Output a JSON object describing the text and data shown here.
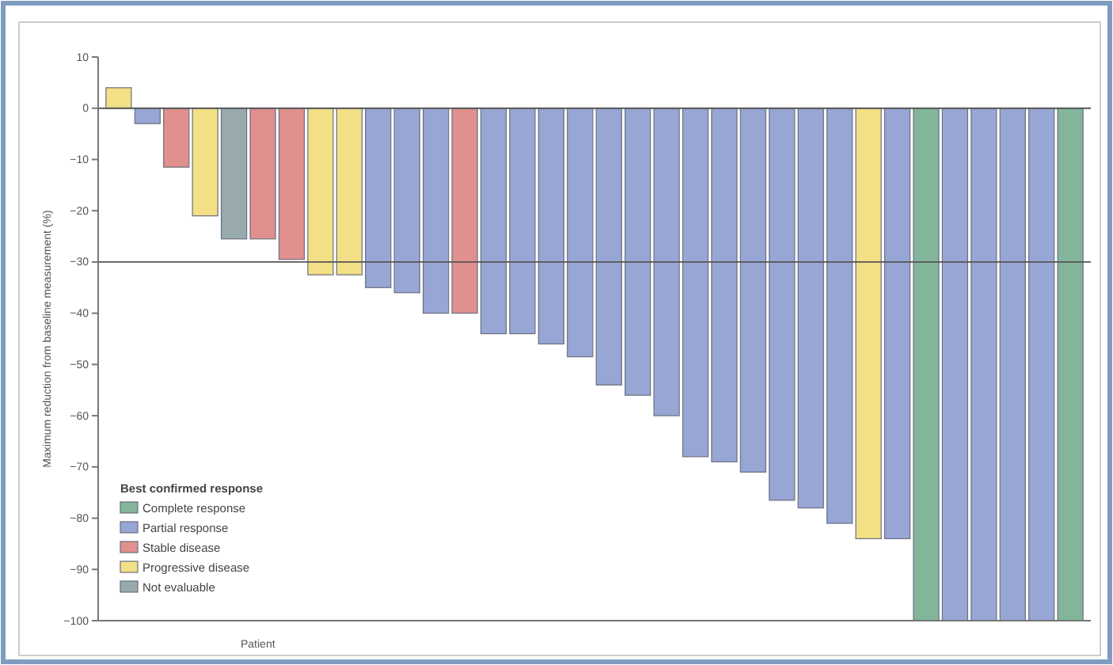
{
  "chart_data": {
    "type": "bar",
    "stacked": true,
    "xlabel": "Patient",
    "ylabel": "Maximum reduction from baseline measurement (%)",
    "legend_title": "Best confirmed response",
    "categories": [
      null,
      null,
      null,
      null,
      null,
      null,
      null,
      null,
      null,
      null,
      null,
      null,
      null,
      null,
      null,
      null,
      null,
      null,
      null,
      null,
      null,
      null,
      null,
      null,
      null,
      null,
      null,
      null,
      null,
      null,
      null,
      null,
      null,
      null
    ],
    "series": [
      {
        "name": "Complete response",
        "color": "#82b59a",
        "values": [
          null,
          null,
          null,
          null,
          null,
          null,
          null,
          null,
          null,
          null,
          null,
          null,
          null,
          null,
          null,
          null,
          null,
          null,
          null,
          null,
          null,
          null,
          null,
          null,
          null,
          null,
          null,
          null,
          -100,
          null,
          null,
          null,
          null,
          -100
        ]
      },
      {
        "name": "Partial response",
        "color": "#97a6d4",
        "values": [
          null,
          -3,
          null,
          null,
          null,
          null,
          null,
          null,
          null,
          -35,
          -36,
          -40,
          null,
          -44,
          -44,
          -46,
          -48.5,
          -54,
          -56,
          -60,
          -68,
          -69,
          -71,
          -76.5,
          -78,
          -81,
          null,
          -84,
          null,
          -100,
          -100,
          -100,
          -100,
          null
        ]
      },
      {
        "name": "Stable disease",
        "color": "#e0908e",
        "values": [
          null,
          null,
          -11.5,
          null,
          null,
          -25.5,
          -29.5,
          null,
          null,
          null,
          null,
          null,
          -40,
          null,
          null,
          null,
          null,
          null,
          null,
          null,
          null,
          null,
          null,
          null,
          null,
          null,
          null,
          null,
          null,
          null,
          null,
          null,
          null,
          null
        ]
      },
      {
        "name": "Progressive disease",
        "color": "#f3df86",
        "values": [
          4,
          null,
          null,
          -21,
          null,
          null,
          null,
          -32.5,
          -32.5,
          null,
          null,
          null,
          null,
          null,
          null,
          null,
          null,
          null,
          null,
          null,
          null,
          null,
          null,
          null,
          null,
          null,
          -84,
          null,
          null,
          null,
          null,
          null,
          null,
          null
        ]
      },
      {
        "name": "Not evaluable",
        "color": "#98aaab",
        "values": [
          null,
          null,
          null,
          null,
          -25.5,
          null,
          null,
          null,
          null,
          null,
          null,
          null,
          null,
          null,
          null,
          null,
          null,
          null,
          null,
          null,
          null,
          null,
          null,
          null,
          null,
          null,
          null,
          null,
          null,
          null,
          null,
          null,
          null,
          null
        ]
      }
    ],
    "ylim": [
      -100,
      10
    ],
    "yticks": [
      10,
      0,
      -10,
      -20,
      -30,
      -40,
      -50,
      -60,
      -70,
      -80,
      -90,
      -100
    ],
    "ref_lines": [
      {
        "axis": "y",
        "value": -30,
        "color": "#555555"
      }
    ],
    "legend": "bottom left",
    "grid": false
  }
}
